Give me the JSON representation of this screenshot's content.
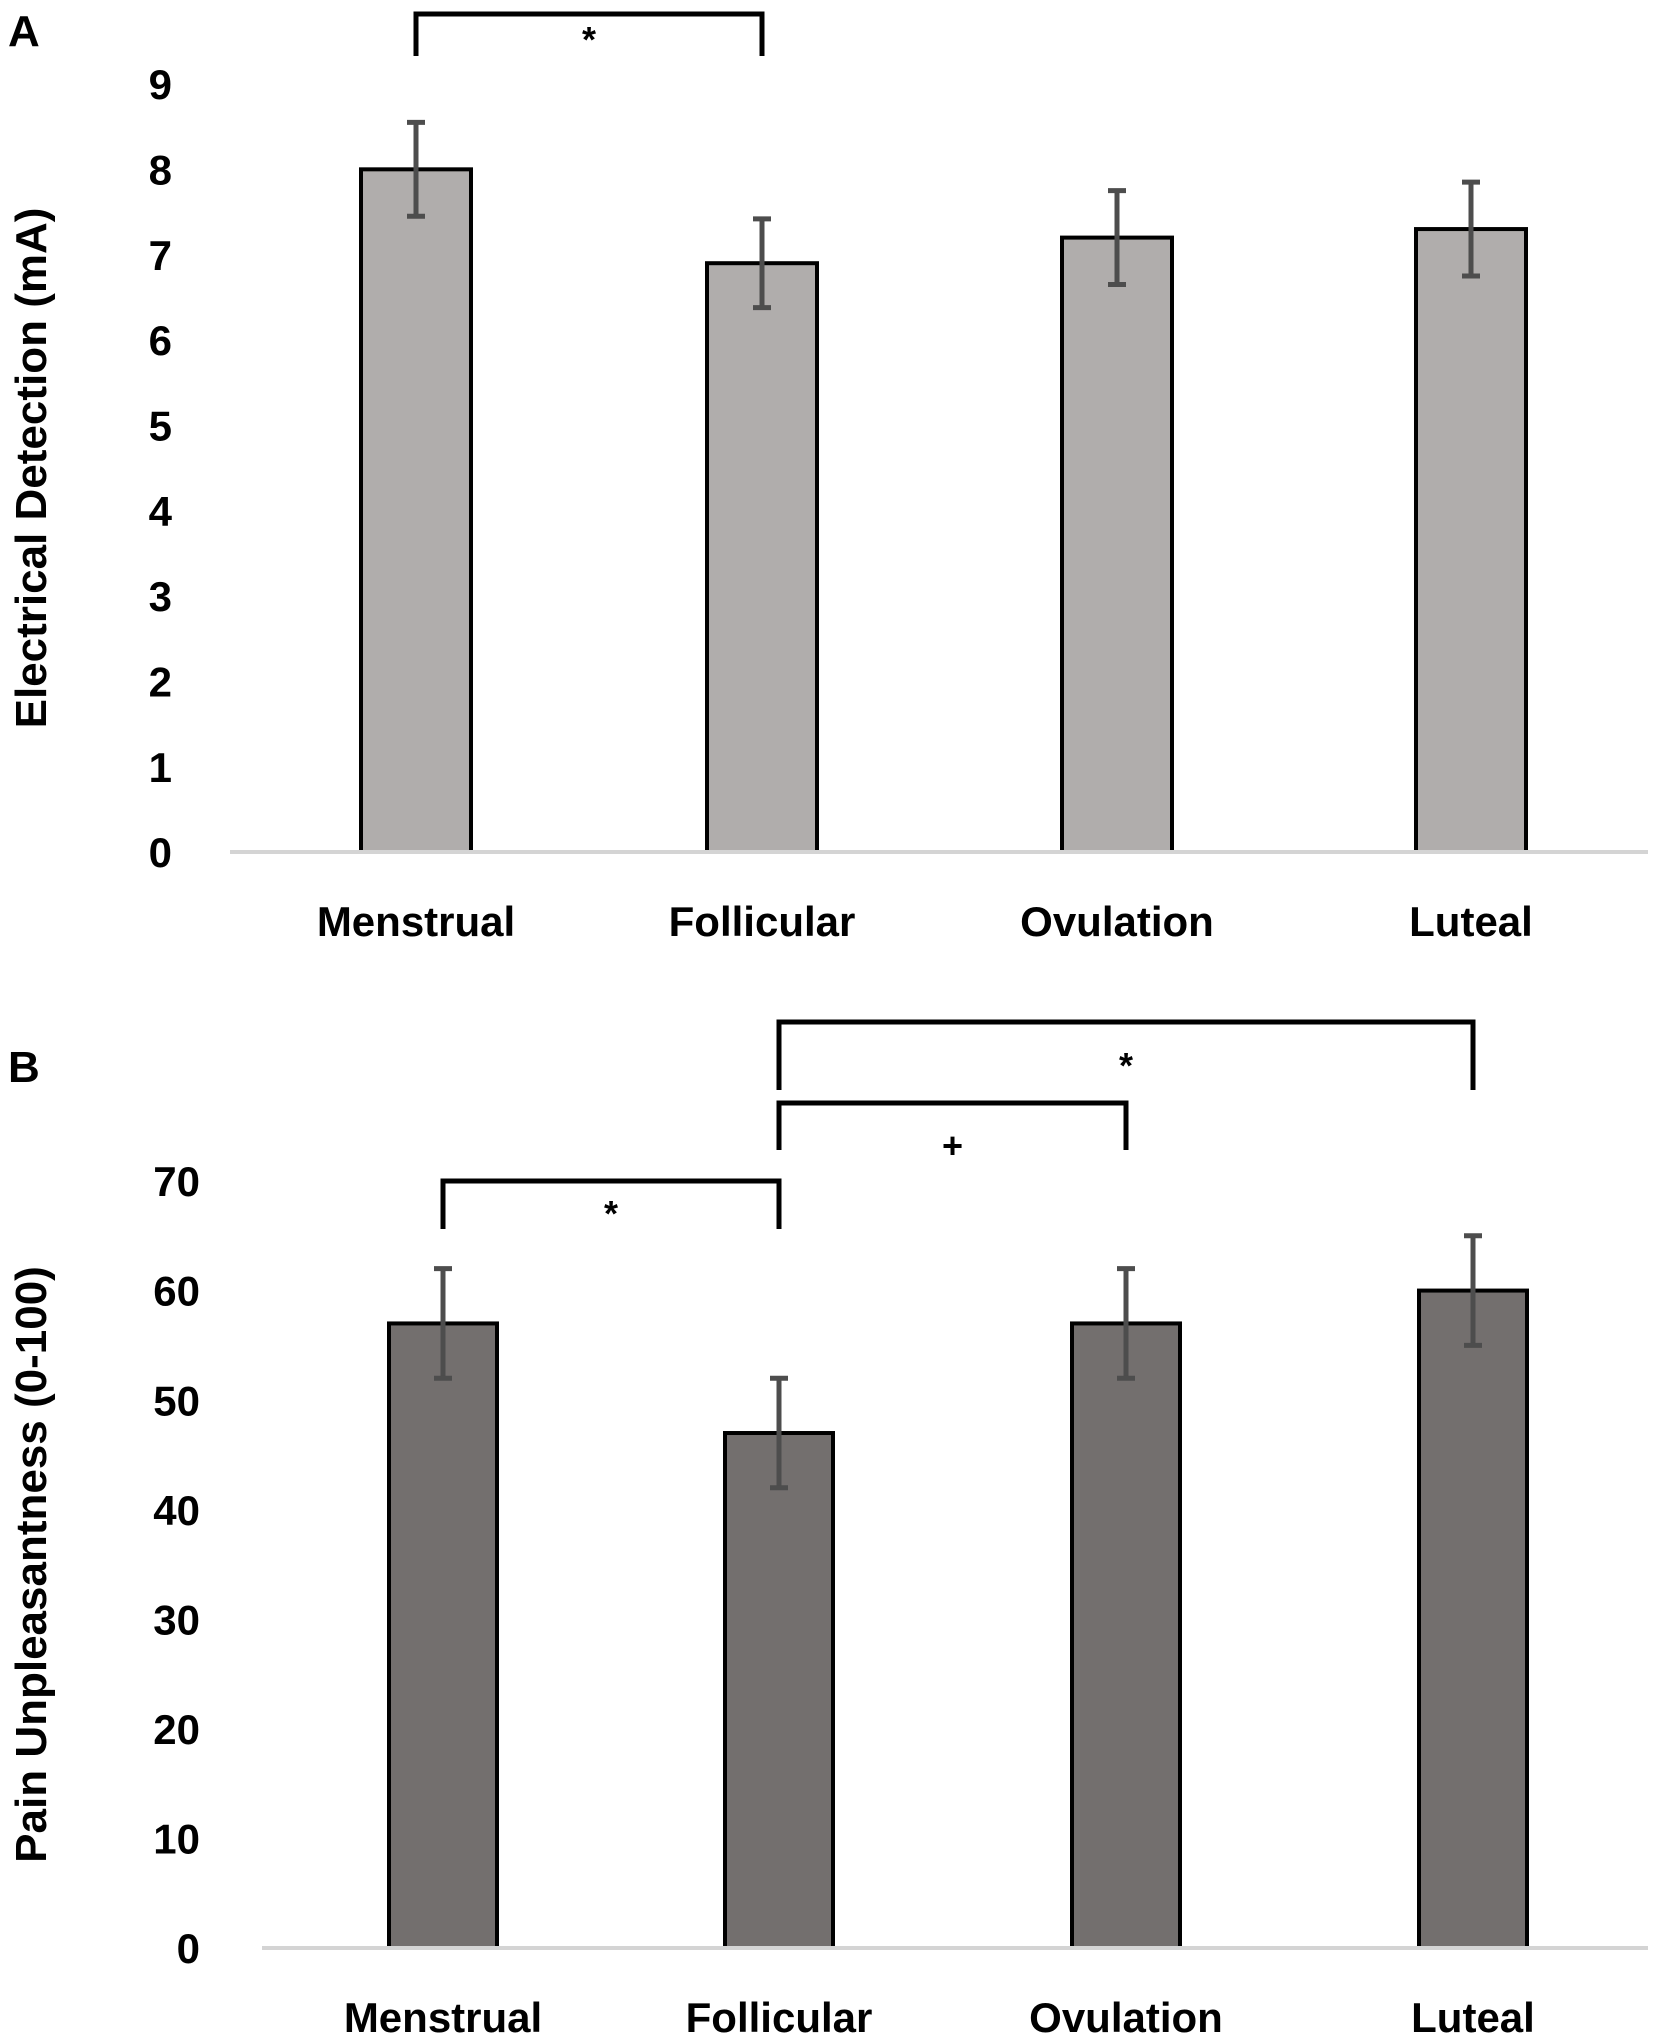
{
  "chart_data": [
    {
      "panel": "A",
      "type": "bar",
      "title": "",
      "xlabel": "",
      "ylabel": "Electrical Detection (mA)",
      "categories": [
        "Menstrual",
        "Follicular",
        "Ovulation",
        "Luteal"
      ],
      "values": [
        8.0,
        6.9,
        7.2,
        7.3
      ],
      "errors": [
        0.55,
        0.52,
        0.55,
        0.55
      ],
      "ylim": [
        0,
        9
      ],
      "yticks": [
        "0",
        "1",
        "2",
        "3",
        "4",
        "5",
        "6",
        "7",
        "8",
        "9"
      ],
      "grid": false,
      "bar_color": "#b0adac",
      "significance": [
        {
          "from": "Menstrual",
          "to": "Follicular",
          "label": "*"
        }
      ]
    },
    {
      "panel": "B",
      "type": "bar",
      "title": "",
      "xlabel": "",
      "ylabel": "Pain Unpleasantness (0-100)",
      "categories": [
        "Menstrual",
        "Follicular",
        "Ovulation",
        "Luteal"
      ],
      "values": [
        57,
        47,
        57,
        60
      ],
      "errors": [
        5,
        5,
        5,
        5
      ],
      "ylim": [
        0,
        70
      ],
      "yticks": [
        "0",
        "10",
        "20",
        "30",
        "40",
        "50",
        "60",
        "70"
      ],
      "grid": false,
      "bar_color": "#736f6e",
      "significance": [
        {
          "from": "Menstrual",
          "to": "Follicular",
          "label": "*"
        },
        {
          "from": "Follicular",
          "to": "Ovulation",
          "label": "+"
        },
        {
          "from": "Follicular",
          "to": "Luteal",
          "label": "*"
        }
      ]
    }
  ],
  "colors": {
    "axis": "#d4d4d4",
    "error_bar": "#4d4d4d",
    "outline": "#000000"
  }
}
